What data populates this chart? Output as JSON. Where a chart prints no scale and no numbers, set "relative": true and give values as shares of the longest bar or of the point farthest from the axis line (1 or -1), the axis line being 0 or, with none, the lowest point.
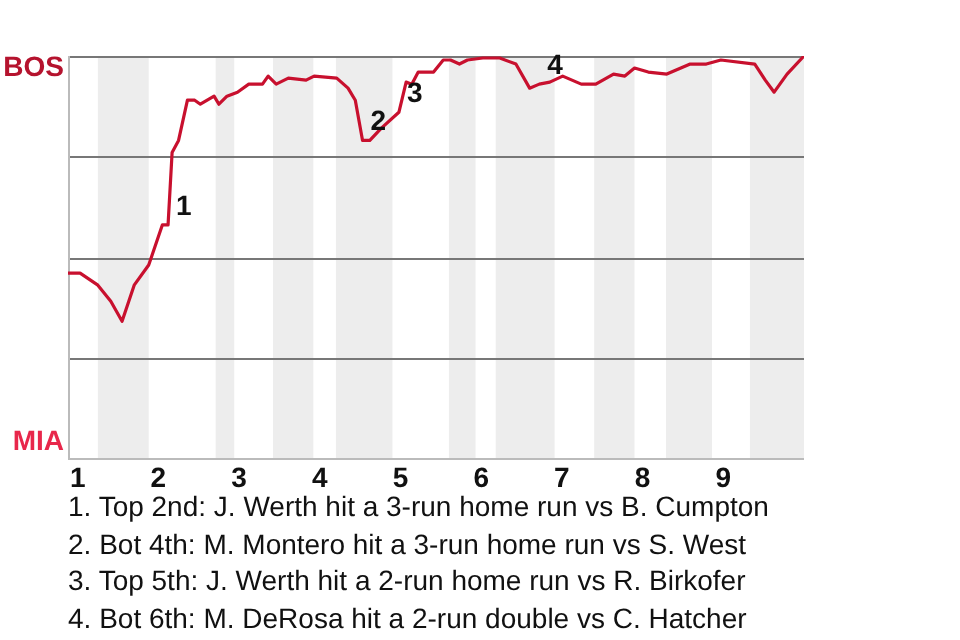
{
  "chart_data": {
    "type": "line",
    "x": [
      0.88,
      1.03,
      1.25,
      1.41,
      1.55,
      1.7,
      1.88,
      2.05,
      2.12,
      2.17,
      2.25,
      2.36,
      2.45,
      2.52,
      2.69,
      2.75,
      2.85,
      2.98,
      3.12,
      3.29,
      3.36,
      3.46,
      3.61,
      3.83,
      3.93,
      4.21,
      4.35,
      4.44,
      4.53,
      4.62,
      4.76,
      4.98,
      5.07,
      5.14,
      5.22,
      5.41,
      5.53,
      5.62,
      5.73,
      5.83,
      6.02,
      6.23,
      6.43,
      6.6,
      6.72,
      6.85,
      7.01,
      7.24,
      7.42,
      7.64,
      7.78,
      7.9,
      8.07,
      8.3,
      8.59,
      8.79,
      8.97,
      9.39,
      9.52,
      9.63,
      9.79,
      10
    ],
    "series": [
      {
        "color": "#c8102e",
        "values": [
          0.46,
          0.46,
          0.43,
          0.39,
          0.34,
          0.43,
          0.48,
          0.58,
          0.58,
          0.76,
          0.79,
          0.89,
          0.89,
          0.88,
          0.9,
          0.88,
          0.9,
          0.91,
          0.93,
          0.93,
          0.95,
          0.93,
          0.945,
          0.94,
          0.95,
          0.945,
          0.92,
          0.89,
          0.79,
          0.79,
          0.82,
          0.86,
          0.935,
          0.93,
          0.96,
          0.96,
          0.99,
          0.99,
          0.98,
          0.99,
          0.995,
          0.995,
          0.98,
          0.92,
          0.93,
          0.935,
          0.95,
          0.93,
          0.93,
          0.955,
          0.95,
          0.97,
          0.96,
          0.955,
          0.98,
          0.98,
          0.99,
          0.98,
          0.94,
          0.91,
          0.955,
          1
        ]
      }
    ],
    "relative": true,
    "xlim": [
      0.88,
      10
    ],
    "xticks": [
      1,
      2,
      3,
      4,
      5,
      6,
      7,
      8,
      9
    ],
    "grid": "y",
    "marker": "none",
    "bands": [
      {
        "axis": "x",
        "from": 1.25,
        "to": 1.88,
        "color": "#ededed"
      },
      {
        "axis": "x",
        "from": 2.71,
        "to": 2.94,
        "color": "#ededed"
      },
      {
        "axis": "x",
        "from": 3.42,
        "to": 3.92,
        "color": "#ededed"
      },
      {
        "axis": "x",
        "from": 4.2,
        "to": 4.9,
        "color": "#ededed"
      },
      {
        "axis": "x",
        "from": 5.6,
        "to": 5.93,
        "color": "#ededed"
      },
      {
        "axis": "x",
        "from": 6.18,
        "to": 6.91,
        "color": "#ededed"
      },
      {
        "axis": "x",
        "from": 7.4,
        "to": 7.9,
        "color": "#ededed"
      },
      {
        "axis": "x",
        "from": 8.29,
        "to": 8.86,
        "color": "#ededed"
      },
      {
        "axis": "x",
        "from": 9.33,
        "to": 10,
        "color": "#ededed"
      }
    ],
    "annotations": [
      "BOS",
      "MIA",
      {
        "text": "1",
        "x": 2.12,
        "y": 0.58
      },
      {
        "text": "2",
        "x": 4.53,
        "y": 0.79
      },
      {
        "text": "3",
        "x": 4.98,
        "y": 0.86
      },
      {
        "text": "4",
        "x": 6.72,
        "y": 0.93
      },
      "1. Top 2nd: J. Werth hit a 3-run home run vs B. Cumpton",
      "2. Bot 4th: M. Montero hit a 3-run home run vs S. West",
      "3. Top 5th: J. Werth hit a 2-run home run vs R. Birkofer",
      "4. Bot 6th: M. DeRosa hit a 2-run double vs C. Hatcher"
    ]
  }
}
